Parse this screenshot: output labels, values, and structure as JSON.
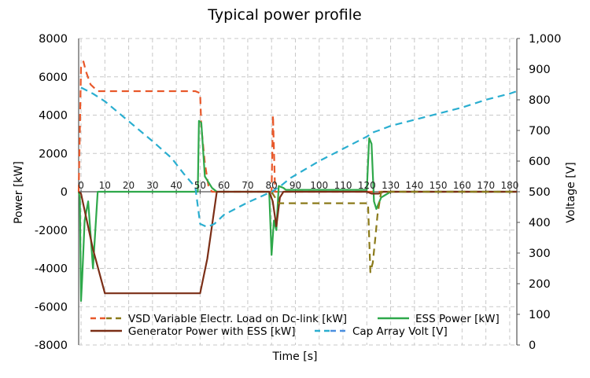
{
  "chart_data": {
    "type": "line",
    "title": "Typical power profile",
    "xlabel": "Time [s]",
    "ylabel": "Power [kW]",
    "y2label": "Voltage [V]",
    "xlim": [
      -1,
      183
    ],
    "ylim": [
      -8000,
      8000
    ],
    "y2lim": [
      0,
      1000
    ],
    "x_ticks": [
      0,
      10,
      20,
      30,
      40,
      50,
      60,
      70,
      80,
      90,
      100,
      110,
      120,
      130,
      140,
      150,
      160,
      170,
      180
    ],
    "y_ticks": [
      "8000",
      "6000",
      "4000",
      "2000",
      "0",
      "-2000",
      "-4000",
      "-6000",
      "-8000"
    ],
    "y2_ticks": [
      "1,000",
      "900",
      "800",
      "700",
      "600",
      "500",
      "400",
      "300",
      "200",
      "100",
      "0"
    ],
    "grid": true,
    "legend_position": "bottom",
    "series": [
      {
        "name": "VSD Variable Electr. Load on Dc-link [kW]",
        "axis": "left",
        "color": "#E8582A",
        "dash": "dashed",
        "points": [
          [
            -1,
            0
          ],
          [
            0,
            6500
          ],
          [
            1,
            6800
          ],
          [
            2,
            6300
          ],
          [
            4,
            5600
          ],
          [
            7,
            5250
          ],
          [
            48,
            5250
          ],
          [
            50,
            5150
          ],
          [
            50.5,
            3400
          ],
          [
            52,
            1500
          ],
          [
            53.5,
            300
          ],
          [
            55,
            0
          ],
          [
            80,
            0
          ],
          [
            80.6,
            4000
          ],
          [
            81.5,
            0
          ],
          [
            121,
            0
          ],
          [
            122,
            0
          ],
          [
            130,
            0
          ],
          [
            183,
            0
          ]
        ]
      },
      {
        "name": "ESS Power [kW]",
        "axis": "left",
        "color": "#2EA84A",
        "dash": "solid",
        "points": [
          [
            -1,
            0
          ],
          [
            -0.5,
            -300
          ],
          [
            0,
            -5700
          ],
          [
            0.5,
            -4500
          ],
          [
            1.5,
            -1500
          ],
          [
            3,
            -500
          ],
          [
            5,
            -4000
          ],
          [
            7,
            0
          ],
          [
            49,
            0
          ],
          [
            49.5,
            3700
          ],
          [
            50.5,
            3600
          ],
          [
            52,
            800
          ],
          [
            55,
            200
          ],
          [
            57,
            0
          ],
          [
            79,
            0
          ],
          [
            80,
            -3300
          ],
          [
            81,
            -1500
          ],
          [
            82,
            -2000
          ],
          [
            83,
            300
          ],
          [
            85,
            200
          ],
          [
            86,
            100
          ],
          [
            120,
            100
          ],
          [
            121,
            2800
          ],
          [
            122,
            2500
          ],
          [
            123,
            -500
          ],
          [
            124,
            -900
          ],
          [
            126,
            -300
          ],
          [
            130,
            0
          ],
          [
            183,
            0
          ]
        ]
      },
      {
        "name": "Generator Power with ESS [kW]",
        "axis": "left",
        "color": "#7B2E16",
        "dash": "solid",
        "points": [
          [
            -1,
            0
          ],
          [
            0,
            -100
          ],
          [
            5,
            -3000
          ],
          [
            10,
            -5300
          ],
          [
            50,
            -5300
          ],
          [
            53,
            -3500
          ],
          [
            57,
            0
          ],
          [
            79,
            0
          ],
          [
            80.5,
            -500
          ],
          [
            82,
            -1800
          ],
          [
            83.5,
            -300
          ],
          [
            85,
            0
          ],
          [
            120,
            0
          ],
          [
            122,
            -100
          ],
          [
            125,
            -100
          ],
          [
            127,
            0
          ],
          [
            183,
            0
          ]
        ]
      },
      {
        "name": "VSD Variable Electr. Load on Dc-link [kW] (olive)",
        "axis": "left",
        "color": "#8B7A1A",
        "dash": "dashed",
        "points": [
          [
            80,
            0
          ],
          [
            81,
            -200
          ],
          [
            83,
            -600
          ],
          [
            120,
            -600
          ],
          [
            120.5,
            -600
          ],
          [
            121.5,
            -4200
          ],
          [
            122.5,
            -3700
          ],
          [
            123.5,
            -2500
          ],
          [
            124.5,
            -1200
          ],
          [
            126,
            0
          ],
          [
            183,
            0
          ]
        ]
      },
      {
        "name": "Cap Array Volt [V]",
        "axis": "right",
        "color": "#2AAED0",
        "dash": "dashed",
        "points": [
          [
            0,
            840
          ],
          [
            5,
            820
          ],
          [
            10,
            795
          ],
          [
            20,
            730
          ],
          [
            30,
            665
          ],
          [
            38,
            610
          ],
          [
            43,
            560
          ],
          [
            48,
            515
          ],
          [
            50,
            395
          ],
          [
            53,
            385
          ],
          [
            56,
            395
          ],
          [
            60,
            425
          ],
          [
            70,
            465
          ],
          [
            80,
            500
          ],
          [
            84,
            520
          ],
          [
            88,
            545
          ],
          [
            100,
            600
          ],
          [
            110,
            640
          ],
          [
            120,
            680
          ],
          [
            122,
            690
          ],
          [
            123,
            695
          ],
          [
            125,
            700
          ],
          [
            130,
            715
          ],
          [
            140,
            735
          ],
          [
            150,
            755
          ],
          [
            160,
            775
          ],
          [
            170,
            800
          ],
          [
            180,
            820
          ],
          [
            183,
            828
          ]
        ]
      }
    ],
    "legend": [
      {
        "label": "VSD Variable Electr.  Load on Dc-link [kW]",
        "colors": [
          "#E8582A",
          "#8B7A1A"
        ],
        "dash": true
      },
      {
        "label": "ESS Power [kW]",
        "colors": [
          "#2EA84A"
        ],
        "dash": false
      },
      {
        "label": "Generator Power with ESS [kW]",
        "colors": [
          "#7B2E16"
        ],
        "dash": false
      },
      {
        "label": "Cap Array Volt [V]",
        "colors": [
          "#2AAED0",
          "#4A8FE0"
        ],
        "dash": true
      }
    ]
  }
}
